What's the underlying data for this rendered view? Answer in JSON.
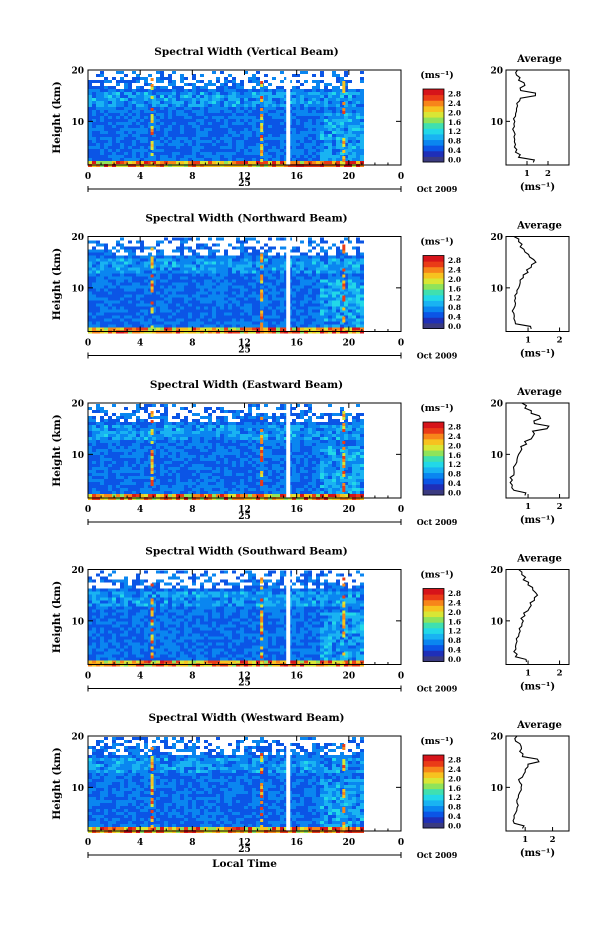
{
  "figure": {
    "x_axis_label": "Local Time",
    "date_label": "Oct 2009",
    "day_label": "25",
    "colorbar_unit": "(ms⁻¹)",
    "average_title": "Average",
    "average_unit": "(ms⁻¹)"
  },
  "colors": {
    "scale": [
      "#3a3a80",
      "#1f2fb8",
      "#0b55e6",
      "#0a86f0",
      "#19b3f2",
      "#22d8e8",
      "#3fe0b0",
      "#8fe35a",
      "#d9e635",
      "#f7c21f",
      "#f7851a",
      "#ea3b17",
      "#d6141a"
    ]
  },
  "chart_data": [
    {
      "type": "heatmap",
      "title": "Spectral Width (Vertical Beam)",
      "ylabel": "Height (km)",
      "xlabel": "",
      "x_ticks": [
        "0",
        "4",
        "8",
        "12",
        "16",
        "20",
        "0"
      ],
      "y_ticks": [
        "10",
        "20"
      ],
      "xlim": [
        0,
        24
      ],
      "ylim": [
        1.5,
        20
      ],
      "data_x_range": [
        0,
        21
      ],
      "gap_hours": 15.2,
      "colorbar_ticks": [
        "2.8",
        "2.4",
        "2.0",
        "1.6",
        "1.2",
        "0.8",
        "0.4",
        "0.0"
      ],
      "colorbar_range": [
        0,
        2.8
      ],
      "average": {
        "xticks": [
          "1",
          "2"
        ],
        "yticks": [
          "10",
          "20"
        ],
        "xlim": [
          0,
          3
        ],
        "heights": [
          2,
          3,
          4,
          5,
          6,
          7,
          8,
          9,
          10,
          11,
          12,
          13,
          14,
          15,
          16,
          17,
          18,
          19,
          20
        ],
        "values": [
          1.3,
          0.6,
          0.45,
          0.4,
          0.4,
          0.38,
          0.38,
          0.4,
          0.42,
          0.45,
          0.5,
          0.55,
          0.65,
          1.4,
          0.7,
          0.9,
          0.6,
          0.5,
          0.55
        ]
      }
    },
    {
      "type": "heatmap",
      "title": "Spectral Width (Northward Beam)",
      "ylabel": "Height (km)",
      "xlabel": "",
      "x_ticks": [
        "0",
        "4",
        "8",
        "12",
        "16",
        "20",
        "0"
      ],
      "y_ticks": [
        "10",
        "20"
      ],
      "xlim": [
        0,
        24
      ],
      "ylim": [
        1.5,
        20
      ],
      "data_x_range": [
        0,
        21
      ],
      "gap_hours": 15.2,
      "colorbar_ticks": [
        "2.8",
        "2.4",
        "2.0",
        "1.6",
        "1.2",
        "0.8",
        "0.4",
        "0.0"
      ],
      "colorbar_range": [
        0,
        2.8
      ],
      "average": {
        "xticks": [
          "1",
          "2"
        ],
        "yticks": [
          "10",
          "20"
        ],
        "xlim": [
          0.3,
          2.3
        ],
        "heights": [
          2,
          3,
          4,
          5,
          6,
          7,
          8,
          9,
          10,
          11,
          12,
          13,
          14,
          15,
          16,
          17,
          18,
          19,
          20
        ],
        "values": [
          1.1,
          0.6,
          0.55,
          0.55,
          0.55,
          0.6,
          0.6,
          0.65,
          0.7,
          0.75,
          0.85,
          1.0,
          1.1,
          1.25,
          1.05,
          0.9,
          0.75,
          0.7,
          0.55
        ]
      }
    },
    {
      "type": "heatmap",
      "title": "Spectral Width (Eastward Beam)",
      "ylabel": "Height (km)",
      "xlabel": "",
      "x_ticks": [
        "0",
        "4",
        "8",
        "12",
        "16",
        "20",
        "0"
      ],
      "y_ticks": [
        "10",
        "20"
      ],
      "xlim": [
        0,
        24
      ],
      "ylim": [
        1.5,
        20
      ],
      "data_x_range": [
        0,
        21
      ],
      "gap_hours": 15.2,
      "colorbar_ticks": [
        "2.8",
        "2.4",
        "2.0",
        "1.6",
        "1.2",
        "0.8",
        "0.4",
        "0.0"
      ],
      "colorbar_range": [
        0,
        2.8
      ],
      "average": {
        "xticks": [
          "1",
          "2"
        ],
        "yticks": [
          "10",
          "20"
        ],
        "xlim": [
          0.3,
          2.3
        ],
        "heights": [
          2,
          3,
          4,
          5,
          6,
          7,
          8,
          9,
          10,
          11,
          12,
          13,
          14,
          15,
          16,
          17,
          18,
          19,
          20
        ],
        "values": [
          0.9,
          0.55,
          0.5,
          0.5,
          0.55,
          0.55,
          0.6,
          0.65,
          0.7,
          0.8,
          0.95,
          1.1,
          1.2,
          1.6,
          1.2,
          1.4,
          1.1,
          0.9,
          0.8
        ]
      }
    },
    {
      "type": "heatmap",
      "title": "Spectral Width (Southward Beam)",
      "ylabel": "Height (km)",
      "xlabel": "",
      "x_ticks": [
        "0",
        "4",
        "8",
        "12",
        "16",
        "20",
        "0"
      ],
      "y_ticks": [
        "10",
        "20"
      ],
      "xlim": [
        0,
        24
      ],
      "ylim": [
        1.5,
        20
      ],
      "data_x_range": [
        0,
        21
      ],
      "gap_hours": 15.2,
      "colorbar_ticks": [
        "2.8",
        "2.4",
        "2.0",
        "1.6",
        "1.2",
        "0.8",
        "0.4",
        "0.0"
      ],
      "colorbar_range": [
        0,
        2.8
      ],
      "average": {
        "xticks": [
          "1",
          "2"
        ],
        "yticks": [
          "10",
          "20"
        ],
        "xlim": [
          0.3,
          2.3
        ],
        "heights": [
          2,
          3,
          4,
          5,
          6,
          7,
          8,
          9,
          10,
          11,
          12,
          13,
          14,
          15,
          16,
          17,
          18,
          19,
          20
        ],
        "values": [
          0.95,
          0.6,
          0.55,
          0.6,
          0.65,
          0.7,
          0.75,
          0.8,
          0.85,
          0.9,
          1.0,
          1.1,
          1.2,
          1.3,
          1.15,
          1.0,
          0.85,
          0.8,
          0.7
        ]
      }
    },
    {
      "type": "heatmap",
      "title": "Spectral Width (Westward Beam)",
      "ylabel": "Height (km)",
      "xlabel": "Local Time",
      "x_ticks": [
        "0",
        "4",
        "8",
        "12",
        "16",
        "20",
        "0"
      ],
      "y_ticks": [
        "10",
        "20"
      ],
      "xlim": [
        0,
        24
      ],
      "ylim": [
        1.5,
        20
      ],
      "data_x_range": [
        0,
        21
      ],
      "gap_hours": 15.2,
      "colorbar_ticks": [
        "2.8",
        "2.4",
        "2.0",
        "1.6",
        "1.2",
        "0.8",
        "0.4",
        "0.0"
      ],
      "colorbar_range": [
        0,
        2.8
      ],
      "average": {
        "xticks": [
          "1",
          "2"
        ],
        "yticks": [
          "10",
          "20"
        ],
        "xlim": [
          0.3,
          2.6
        ],
        "heights": [
          2,
          3,
          4,
          5,
          6,
          7,
          8,
          9,
          10,
          11,
          12,
          13,
          14,
          15,
          16,
          17,
          18,
          19,
          20
        ],
        "values": [
          0.9,
          0.6,
          0.6,
          0.65,
          0.7,
          0.7,
          0.75,
          0.8,
          0.85,
          0.8,
          0.9,
          1.0,
          1.1,
          1.5,
          0.9,
          0.8,
          0.85,
          0.65,
          0.7
        ]
      }
    }
  ]
}
